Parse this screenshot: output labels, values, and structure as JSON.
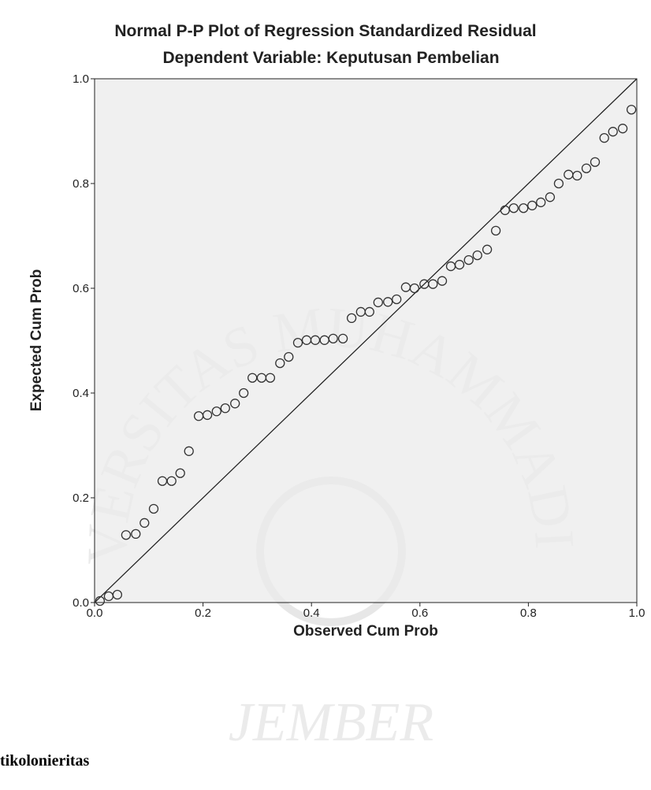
{
  "chart_data": {
    "type": "scatter",
    "title": "Normal P-P Plot of Regression Standardized Residual",
    "subtitle": "Dependent Variable: Keputusan Pembelian",
    "xlabel": "Observed Cum Prob",
    "ylabel": "Expected Cum Prob",
    "color": "#333333",
    "reference_line": true,
    "x": [
      0.01,
      0.026,
      0.042,
      0.058,
      0.076,
      0.092,
      0.109,
      0.125,
      0.142,
      0.158,
      0.174,
      0.192,
      0.208,
      0.225,
      0.241,
      0.259,
      0.275,
      0.291,
      0.308,
      0.324,
      0.342,
      0.358,
      0.375,
      0.391,
      0.407,
      0.424,
      0.44,
      0.458,
      0.474,
      0.491,
      0.507,
      0.523,
      0.541,
      0.557,
      0.574,
      0.59,
      0.608,
      0.624,
      0.641,
      0.657,
      0.673,
      0.69,
      0.706,
      0.724,
      0.74,
      0.757,
      0.773,
      0.791,
      0.807,
      0.823,
      0.84,
      0.856,
      0.874,
      0.89,
      0.907,
      0.923,
      0.94,
      0.956,
      0.974,
      0.99
    ],
    "values": [
      0.003,
      0.012,
      0.015,
      0.129,
      0.131,
      0.152,
      0.179,
      0.232,
      0.232,
      0.247,
      0.289,
      0.356,
      0.358,
      0.365,
      0.371,
      0.38,
      0.4,
      0.429,
      0.429,
      0.429,
      0.457,
      0.469,
      0.496,
      0.501,
      0.501,
      0.501,
      0.504,
      0.504,
      0.543,
      0.555,
      0.555,
      0.573,
      0.574,
      0.579,
      0.602,
      0.6,
      0.608,
      0.608,
      0.614,
      0.642,
      0.645,
      0.654,
      0.663,
      0.674,
      0.71,
      0.749,
      0.753,
      0.753,
      0.758,
      0.764,
      0.774,
      0.8,
      0.817,
      0.815,
      0.829,
      0.841,
      0.887,
      0.899,
      0.905,
      0.941
    ],
    "xlim": [
      0,
      1
    ],
    "ylim": [
      0,
      1
    ],
    "xticks": [
      {
        "value": 0,
        "label": "0.0"
      },
      0.2,
      0.4,
      0.6,
      0.8,
      {
        "value": 1,
        "label": "1.0"
      }
    ],
    "yticks": [
      {
        "value": 0,
        "label": "0.0"
      },
      0.2,
      0.4,
      0.6,
      0.8,
      {
        "value": 1,
        "label": "1.0"
      }
    ]
  },
  "watermark": {
    "arc_text": "UNIVERSITAS MUHAMMADIYAH",
    "bottom_text": "JEMBER"
  },
  "footer_text": "tikolonieritas"
}
